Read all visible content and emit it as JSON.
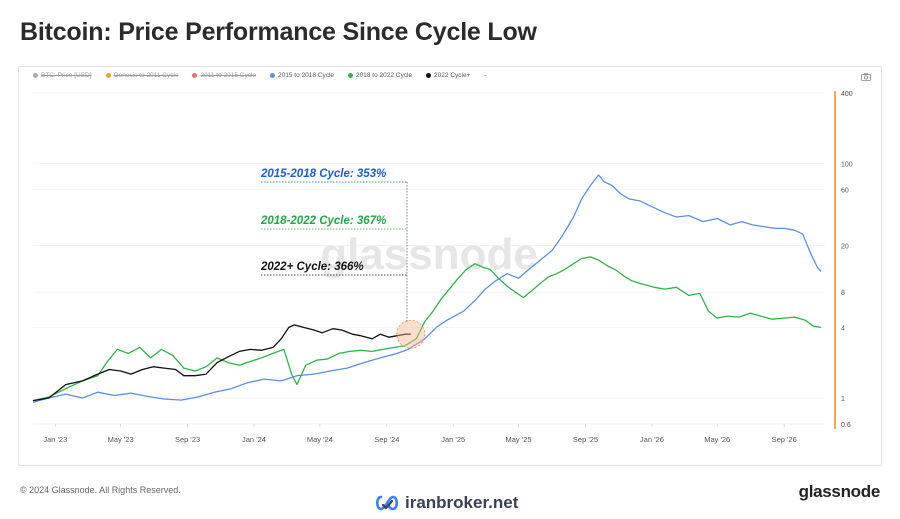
{
  "title": "Bitcoin: Price Performance Since Cycle Low",
  "footer": {
    "copyright": "© 2024 Glassnode. All Rights Reserved.",
    "brand": "glassnode",
    "watermark_text": "iranbroker.net",
    "watermark_icon": "infinity-check-icon"
  },
  "chart_watermark": "glassnode",
  "legend": [
    {
      "label": "BTC: Price [USD]",
      "color": "#aaaaaa",
      "enabled": false
    },
    {
      "label": "Genesis to 2011 Cycle",
      "color": "#f5a033",
      "enabled": false
    },
    {
      "label": "2011 to 2015 Cycle",
      "color": "#e8706f",
      "enabled": false
    },
    {
      "label": "2015 to 2018 Cycle",
      "color": "#5b8fe6",
      "enabled": true
    },
    {
      "label": "2018 to 2022 Cycle",
      "color": "#2fb44a",
      "enabled": true
    },
    {
      "label": "2022 Cycle+",
      "color": "#111111",
      "enabled": true
    },
    {
      "label": "-",
      "color": "#ffffff",
      "enabled": true
    }
  ],
  "annotations": [
    {
      "text": "2015-2018 Cycle: 353%",
      "color": "#1b5fd6"
    },
    {
      "text": "2018-2022 Cycle: 367%",
      "color": "#22a84a"
    },
    {
      "text": "2022+ Cycle: 366%",
      "color": "#111111"
    }
  ],
  "colors": {
    "cycle_2015": "#5b8fe6",
    "cycle_2018": "#2fb44a",
    "cycle_2022": "#111111",
    "axis_accent": "#f7931a",
    "marker": "#f7b58f"
  },
  "chart_data": {
    "type": "line",
    "yscale": "log",
    "ylim": [
      0.6,
      400
    ],
    "y_ticks": [
      0.6,
      1,
      4,
      8,
      20,
      60,
      100,
      400
    ],
    "x_ticks": [
      "Jan '23",
      "May '23",
      "Sep '23",
      "Jan '24",
      "May '24",
      "Sep '24",
      "Jan '25",
      "May '25",
      "Sep '25",
      "Jan '26",
      "May '26",
      "Sep '26"
    ],
    "x_range": [
      "2022-11-21",
      "2026-11-15"
    ],
    "series": [
      {
        "name": "2015 to 2018 Cycle",
        "points": [
          [
            "2022-11-21",
            0.92
          ],
          [
            "2022-12-20",
            1.0
          ],
          [
            "2023-01-20",
            1.08
          ],
          [
            "2023-02-20",
            1.0
          ],
          [
            "2023-03-20",
            1.12
          ],
          [
            "2023-04-20",
            1.05
          ],
          [
            "2023-05-20",
            1.1
          ],
          [
            "2023-06-20",
            1.03
          ],
          [
            "2023-07-20",
            0.98
          ],
          [
            "2023-08-20",
            0.96
          ],
          [
            "2023-09-20",
            1.02
          ],
          [
            "2023-10-20",
            1.12
          ],
          [
            "2023-11-20",
            1.2
          ],
          [
            "2023-12-20",
            1.35
          ],
          [
            "2024-01-20",
            1.45
          ],
          [
            "2024-02-20",
            1.4
          ],
          [
            "2024-03-20",
            1.55
          ],
          [
            "2024-04-20",
            1.6
          ],
          [
            "2024-05-20",
            1.7
          ],
          [
            "2024-06-20",
            1.8
          ],
          [
            "2024-07-20",
            2.0
          ],
          [
            "2024-08-20",
            2.2
          ],
          [
            "2024-09-20",
            2.4
          ],
          [
            "2024-10-10",
            2.6
          ],
          [
            "2024-11-10",
            3.2
          ],
          [
            "2024-12-01",
            4.0
          ],
          [
            "2024-12-20",
            4.6
          ],
          [
            "2025-01-20",
            5.5
          ],
          [
            "2025-02-10",
            6.8
          ],
          [
            "2025-03-01",
            8.5
          ],
          [
            "2025-03-20",
            10.0
          ],
          [
            "2025-04-10",
            11.5
          ],
          [
            "2025-05-01",
            10.5
          ],
          [
            "2025-05-20",
            12.5
          ],
          [
            "2025-06-10",
            15.0
          ],
          [
            "2025-07-01",
            18.0
          ],
          [
            "2025-07-20",
            24.0
          ],
          [
            "2025-08-10",
            35.0
          ],
          [
            "2025-08-25",
            50.0
          ],
          [
            "2025-09-10",
            65.0
          ],
          [
            "2025-09-25",
            80.0
          ],
          [
            "2025-10-05",
            70.0
          ],
          [
            "2025-10-20",
            65.0
          ],
          [
            "2025-11-05",
            55.0
          ],
          [
            "2025-11-20",
            50.0
          ],
          [
            "2025-12-10",
            48.0
          ],
          [
            "2026-01-05",
            42.0
          ],
          [
            "2026-01-25",
            38.0
          ],
          [
            "2026-02-15",
            35.0
          ],
          [
            "2026-03-10",
            36.0
          ],
          [
            "2026-04-05",
            32.0
          ],
          [
            "2026-05-01",
            34.0
          ],
          [
            "2026-05-25",
            30.0
          ],
          [
            "2026-06-15",
            32.0
          ],
          [
            "2026-07-05",
            30.0
          ],
          [
            "2026-07-25",
            29.0
          ],
          [
            "2026-08-15",
            28.0
          ],
          [
            "2026-09-01",
            28.0
          ],
          [
            "2026-09-20",
            27.0
          ],
          [
            "2026-10-05",
            25.0
          ],
          [
            "2026-10-20",
            17.0
          ],
          [
            "2026-11-01",
            13.0
          ],
          [
            "2026-11-08",
            12.0
          ]
        ]
      },
      {
        "name": "2018 to 2022 Cycle",
        "points": [
          [
            "2022-11-21",
            0.95
          ],
          [
            "2022-12-20",
            1.02
          ],
          [
            "2023-01-20",
            1.2
          ],
          [
            "2023-02-20",
            1.4
          ],
          [
            "2023-03-20",
            1.55
          ],
          [
            "2023-04-05",
            2.0
          ],
          [
            "2023-04-25",
            2.6
          ],
          [
            "2023-05-15",
            2.4
          ],
          [
            "2023-06-05",
            2.7
          ],
          [
            "2023-06-25",
            2.2
          ],
          [
            "2023-07-15",
            2.6
          ],
          [
            "2023-08-05",
            2.3
          ],
          [
            "2023-08-25",
            1.8
          ],
          [
            "2023-09-15",
            1.7
          ],
          [
            "2023-10-05",
            1.85
          ],
          [
            "2023-10-25",
            2.2
          ],
          [
            "2023-11-15",
            2.0
          ],
          [
            "2023-12-05",
            1.9
          ],
          [
            "2023-12-25",
            2.05
          ],
          [
            "2024-01-15",
            2.2
          ],
          [
            "2024-02-05",
            2.4
          ],
          [
            "2024-02-25",
            2.6
          ],
          [
            "2024-03-10",
            1.6
          ],
          [
            "2024-03-20",
            1.3
          ],
          [
            "2024-04-05",
            1.9
          ],
          [
            "2024-04-25",
            2.1
          ],
          [
            "2024-05-15",
            2.15
          ],
          [
            "2024-06-05",
            2.4
          ],
          [
            "2024-06-25",
            2.5
          ],
          [
            "2024-07-15",
            2.55
          ],
          [
            "2024-08-05",
            2.5
          ],
          [
            "2024-08-25",
            2.6
          ],
          [
            "2024-09-15",
            2.7
          ],
          [
            "2024-10-05",
            2.8
          ],
          [
            "2024-10-25",
            3.2
          ],
          [
            "2024-11-10",
            4.5
          ],
          [
            "2024-11-25",
            5.5
          ],
          [
            "2024-12-10",
            7.0
          ],
          [
            "2024-12-25",
            8.5
          ],
          [
            "2025-01-10",
            10.5
          ],
          [
            "2025-01-25",
            12.5
          ],
          [
            "2025-02-10",
            14.0
          ],
          [
            "2025-02-25",
            13.0
          ],
          [
            "2025-03-10",
            12.5
          ],
          [
            "2025-03-25",
            10.5
          ],
          [
            "2025-04-10",
            9.0
          ],
          [
            "2025-04-25",
            8.0
          ],
          [
            "2025-05-10",
            7.2
          ],
          [
            "2025-05-25",
            8.2
          ],
          [
            "2025-06-10",
            9.5
          ],
          [
            "2025-06-25",
            10.8
          ],
          [
            "2025-07-10",
            11.5
          ],
          [
            "2025-07-25",
            12.5
          ],
          [
            "2025-08-10",
            14.0
          ],
          [
            "2025-08-25",
            15.5
          ],
          [
            "2025-09-10",
            16.0
          ],
          [
            "2025-09-25",
            15.0
          ],
          [
            "2025-10-10",
            13.5
          ],
          [
            "2025-10-25",
            12.5
          ],
          [
            "2025-11-10",
            11.0
          ],
          [
            "2025-11-25",
            10.0
          ],
          [
            "2025-12-10",
            9.5
          ],
          [
            "2026-01-05",
            8.8
          ],
          [
            "2026-01-25",
            8.5
          ],
          [
            "2026-02-15",
            8.8
          ],
          [
            "2026-03-10",
            7.5
          ],
          [
            "2026-03-30",
            7.8
          ],
          [
            "2026-04-15",
            5.5
          ],
          [
            "2026-05-01",
            4.8
          ],
          [
            "2026-05-20",
            5.0
          ],
          [
            "2026-06-10",
            4.9
          ],
          [
            "2026-07-01",
            5.3
          ],
          [
            "2026-07-20",
            5.0
          ],
          [
            "2026-08-10",
            4.7
          ],
          [
            "2026-09-01",
            4.8
          ],
          [
            "2026-09-20",
            4.9
          ],
          [
            "2026-10-10",
            4.6
          ],
          [
            "2026-10-25",
            4.1
          ],
          [
            "2026-11-08",
            4.0
          ]
        ]
      },
      {
        "name": "2022 Cycle+",
        "points": [
          [
            "2022-11-21",
            0.95
          ],
          [
            "2022-12-20",
            1.0
          ],
          [
            "2023-01-20",
            1.3
          ],
          [
            "2023-02-20",
            1.4
          ],
          [
            "2023-03-20",
            1.6
          ],
          [
            "2023-04-10",
            1.75
          ],
          [
            "2023-05-01",
            1.7
          ],
          [
            "2023-05-20",
            1.6
          ],
          [
            "2023-06-10",
            1.75
          ],
          [
            "2023-06-30",
            1.85
          ],
          [
            "2023-07-20",
            1.8
          ],
          [
            "2023-08-10",
            1.75
          ],
          [
            "2023-08-25",
            1.55
          ],
          [
            "2023-09-15",
            1.55
          ],
          [
            "2023-10-05",
            1.6
          ],
          [
            "2023-10-25",
            2.0
          ],
          [
            "2023-11-15",
            2.25
          ],
          [
            "2023-12-05",
            2.5
          ],
          [
            "2023-12-25",
            2.6
          ],
          [
            "2024-01-15",
            2.55
          ],
          [
            "2024-02-05",
            2.7
          ],
          [
            "2024-02-20",
            3.2
          ],
          [
            "2024-03-05",
            4.0
          ],
          [
            "2024-03-15",
            4.2
          ],
          [
            "2024-04-01",
            4.0
          ],
          [
            "2024-04-20",
            3.8
          ],
          [
            "2024-05-05",
            3.6
          ],
          [
            "2024-05-25",
            3.9
          ],
          [
            "2024-06-10",
            3.8
          ],
          [
            "2024-06-30",
            3.5
          ],
          [
            "2024-07-15",
            3.4
          ],
          [
            "2024-08-05",
            3.2
          ],
          [
            "2024-08-20",
            3.5
          ],
          [
            "2024-09-05",
            3.3
          ],
          [
            "2024-09-20",
            3.4
          ],
          [
            "2024-10-05",
            3.5
          ],
          [
            "2024-10-15",
            3.5
          ]
        ]
      }
    ]
  }
}
